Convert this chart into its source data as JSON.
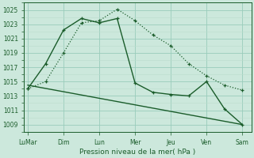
{
  "bg_color": "#cce8dc",
  "grid_color_major": "#99ccbb",
  "grid_color_minor": "#bbddcc",
  "line_color": "#1a5c2a",
  "xlabel": "Pression niveau de la mer( hPa )",
  "ylim": [
    1008.0,
    1026.0
  ],
  "yticks": [
    1009,
    1011,
    1013,
    1015,
    1017,
    1019,
    1021,
    1023,
    1025
  ],
  "xtick_labels": [
    "LuMar",
    "Dim",
    "Lun",
    "Mer",
    "Jeu",
    "Ven",
    "Sam"
  ],
  "xtick_positions": [
    0,
    2,
    4,
    6,
    8,
    10,
    12
  ],
  "xlim": [
    -0.2,
    12.5
  ],
  "series1_x": [
    0,
    1,
    2,
    3,
    4,
    5,
    6,
    7,
    8,
    9,
    10,
    11,
    12
  ],
  "series1_y": [
    1014.0,
    1015.0,
    1019.0,
    1023.2,
    1023.5,
    1025.1,
    1023.5,
    1021.5,
    1020.0,
    1017.5,
    1015.8,
    1014.5,
    1013.8
  ],
  "series2_x": [
    0,
    1,
    2,
    3,
    4,
    5,
    6,
    7,
    8,
    9,
    10,
    11,
    12
  ],
  "series2_y": [
    1014.0,
    1017.5,
    1022.2,
    1023.8,
    1023.2,
    1023.8,
    1014.8,
    1013.5,
    1013.2,
    1013.0,
    1015.0,
    1011.2,
    1009.0
  ],
  "series3_x": [
    0,
    12
  ],
  "series3_y": [
    1014.5,
    1009.0
  ]
}
